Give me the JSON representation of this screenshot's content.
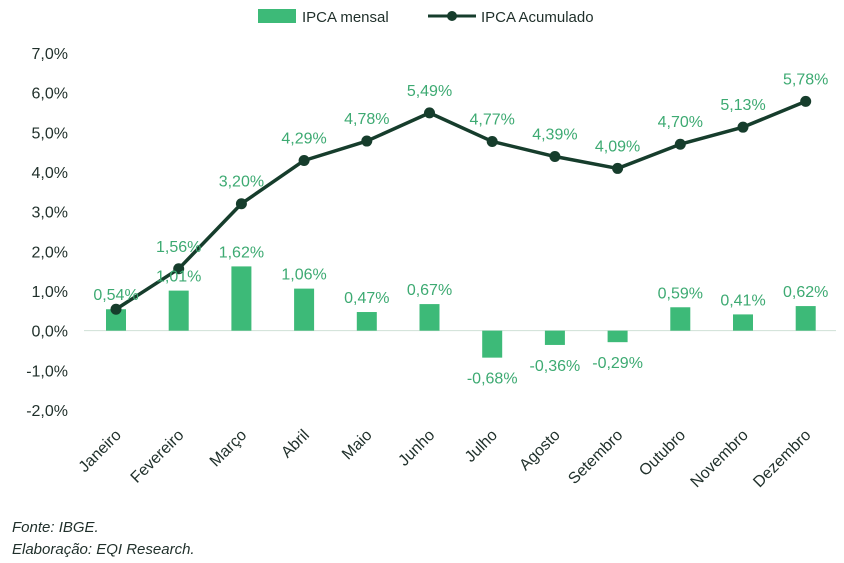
{
  "chart_data": {
    "type": "bar+line",
    "categories": [
      "Janeiro",
      "Fevereiro",
      "Março",
      "Abril",
      "Maio",
      "Junho",
      "Julho",
      "Agosto",
      "Setembro",
      "Outubro",
      "Novembro",
      "Dezembro"
    ],
    "series": [
      {
        "name": "IPCA mensal",
        "kind": "bar",
        "color": "#3dba78",
        "values": [
          0.54,
          1.01,
          1.62,
          1.06,
          0.47,
          0.67,
          -0.68,
          -0.36,
          -0.29,
          0.59,
          0.41,
          0.62
        ],
        "labels": [
          "0,54%",
          "1,01%",
          "1,62%",
          "1,06%",
          "0,47%",
          "0,67%",
          "-0,68%",
          "-0,36%",
          "-0,29%",
          "0,59%",
          "0,41%",
          "0,62%"
        ]
      },
      {
        "name": "IPCA Acumulado",
        "kind": "line",
        "color": "#163d2c",
        "values": [
          0.54,
          1.56,
          3.2,
          4.29,
          4.78,
          5.49,
          4.77,
          4.39,
          4.09,
          4.7,
          5.13,
          5.78
        ],
        "labels": [
          "",
          "1,56%",
          "3,20%",
          "4,29%",
          "4,78%",
          "5,49%",
          "4,77%",
          "4,39%",
          "4,09%",
          "4,70%",
          "5,13%",
          "5,78%"
        ]
      }
    ],
    "yticks": [
      7,
      6,
      5,
      4,
      3,
      2,
      1,
      0,
      -1,
      -2
    ],
    "ytick_labels": [
      "7,0%",
      "6,0%",
      "5,0%",
      "4,0%",
      "3,0%",
      "2,0%",
      "1,0%",
      "0,0%",
      "-1,0%",
      "-2,0%"
    ],
    "ylim": [
      -2,
      7
    ],
    "legend_position": "top-center",
    "grid": false
  },
  "footer": {
    "source": "Fonte: IBGE.",
    "credit": "Elaboração: EQI Research."
  }
}
